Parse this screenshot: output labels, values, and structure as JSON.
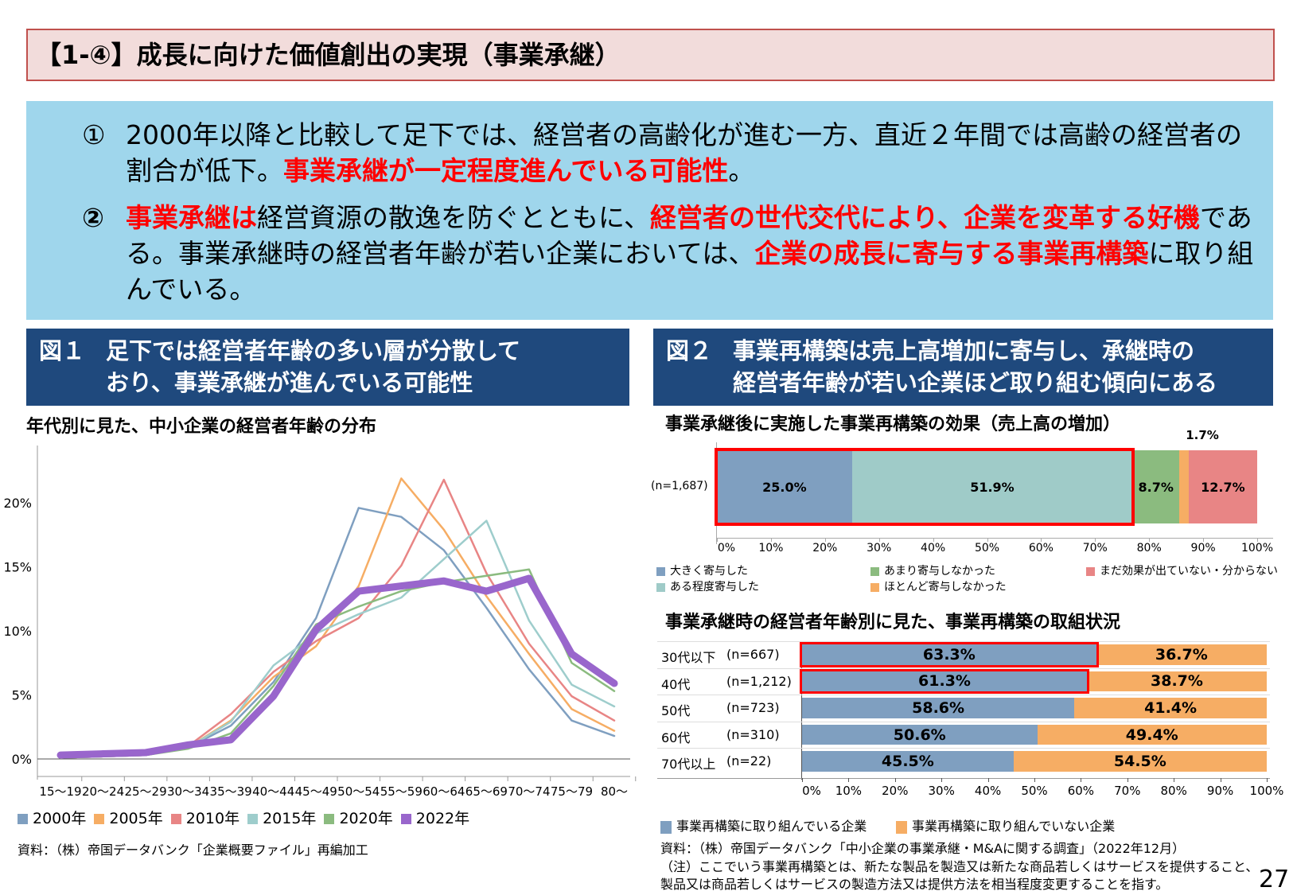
{
  "title": "【1-④】成長に向けた価値創出の実現（事業承継）",
  "summary": {
    "items": [
      {
        "num": "①",
        "segments": [
          {
            "text": "2000年以降と比較して足下では、経営者の高齢化が進む一方、直近２年間では高齢の経営者の割合が低下。",
            "red": false
          },
          {
            "text": "事業承継が一定程度進んでいる可能性",
            "red": true
          },
          {
            "text": "。",
            "red": false
          }
        ]
      },
      {
        "num": "②",
        "segments": [
          {
            "text": "事業承継は",
            "red": true
          },
          {
            "text": "経営資源の散逸を防ぐとともに、",
            "red": false
          },
          {
            "text": "経営者の世代交代により、企業を変革する好機",
            "red": true
          },
          {
            "text": "である。事業承継時の経営者年齢が若い企業においては、",
            "red": false
          },
          {
            "text": "企業の成長に寄与する事業再構築",
            "red": true
          },
          {
            "text": "に取り組んでいる。",
            "red": false
          }
        ]
      }
    ],
    "colors": {
      "background": "#9fd6ec",
      "highlight": "#ff0000"
    }
  },
  "fig1": {
    "label": "図１",
    "heading_line1": "足下では経営者年齢の多い層が分散して",
    "heading_line2": "おり、事業承継が進んでいる可能性",
    "subtitle": "年代別に見た、中小企業の経営者年齢の分布",
    "source": "資料：（株）帝国データバンク「企業概要ファイル」再編加工"
  },
  "fig2": {
    "label": "図２",
    "heading_line1": "事業再構築は売上高増加に寄与し、承継時の",
    "heading_line2": "経営者年齢が若い企業ほど取り組む傾向にある",
    "subtitle_top": "事業承継後に実施した事業再構築の効果（売上高の増加）",
    "subtitle_bottom": "事業承継時の経営者年齢別に見た、事業再構築の取組状況",
    "source": "資料：（株）帝国データバンク「中小企業の事業承継・M&Aに関する調査」（2022年12月）",
    "note_line1": "（注）ここでいう事業再構築とは、新たな製品を製造又は新たな商品若しくはサービスを提供すること、",
    "note_line2": "製品又は商品若しくはサービスの製造方法又は提供方法を相当程度変更することを指す。"
  },
  "page_number": "27",
  "chart_data": [
    {
      "type": "line",
      "categories": [
        "15～19",
        "20～24",
        "25～29",
        "30～34",
        "35～39",
        "40～44",
        "45～49",
        "50～54",
        "55～59",
        "60～64",
        "65～69",
        "70～74",
        "75～79",
        "80～"
      ],
      "ylim": [
        0,
        22
      ],
      "yticks": [
        "0%",
        "5%",
        "10%",
        "15%",
        "20%"
      ],
      "ytick_values": [
        0,
        5,
        10,
        15,
        20
      ],
      "legend_position": "bottom",
      "series": [
        {
          "name": "2000年",
          "color": "#7f9fc0",
          "values": [
            0.1,
            0.2,
            0.3,
            0.9,
            2.6,
            6.0,
            11.0,
            19.6,
            18.9,
            16.3,
            11.8,
            7.0,
            3.0,
            1.8
          ]
        },
        {
          "name": "2005年",
          "color": "#f6ad64",
          "values": [
            0.1,
            0.2,
            0.3,
            0.9,
            3.0,
            6.4,
            8.8,
            13.5,
            21.9,
            17.9,
            12.7,
            8.2,
            3.9,
            2.2
          ]
        },
        {
          "name": "2010年",
          "color": "#e88585",
          "values": [
            0.1,
            0.2,
            0.3,
            1.0,
            3.5,
            6.8,
            9.2,
            11.0,
            15.1,
            21.8,
            14.5,
            9.0,
            4.9,
            3.0
          ]
        },
        {
          "name": "2015年",
          "color": "#9ecdcc",
          "values": [
            0.1,
            0.2,
            0.3,
            0.9,
            2.9,
            7.3,
            9.8,
            11.3,
            12.6,
            15.6,
            18.6,
            10.8,
            5.8,
            4.1
          ]
        },
        {
          "name": "2020年",
          "color": "#8bbb7f",
          "values": [
            0.1,
            0.2,
            0.3,
            0.8,
            2.0,
            5.7,
            10.5,
            11.9,
            13.1,
            13.8,
            14.3,
            14.8,
            7.5,
            5.3
          ]
        },
        {
          "name": "2022年",
          "color": "#9966cc",
          "values": [
            0.3,
            0.4,
            0.5,
            1.1,
            1.5,
            4.9,
            10.1,
            13.1,
            13.5,
            13.9,
            13.1,
            14.1,
            8.2,
            5.9
          ]
        }
      ]
    },
    {
      "type": "bar",
      "orientation": "horizontal-stacked",
      "row_label": "(n=1,687)",
      "xticks": [
        "0%",
        "10%",
        "20%",
        "30%",
        "40%",
        "50%",
        "60%",
        "70%",
        "80%",
        "90%",
        "100%"
      ],
      "series": [
        {
          "name": "大きく寄与した",
          "color": "#7f9fc0",
          "value": 25.0,
          "label": "25.0%"
        },
        {
          "name": "ある程度寄与した",
          "color": "#9fcbc8",
          "value": 51.9,
          "label": "51.9%"
        },
        {
          "name": "あまり寄与しなかった",
          "color": "#8bbb7f",
          "value": 8.7,
          "label": "8.7%"
        },
        {
          "name": "ほとんど寄与しなかった",
          "color": "#f6ad64",
          "value": 1.7,
          "label": "1.7%"
        },
        {
          "name": "まだ効果が出ていない・分からない",
          "color": "#e88585",
          "value": 12.7,
          "label": "12.7%"
        }
      ],
      "highlight_color": "#ff0000"
    },
    {
      "type": "bar",
      "orientation": "horizontal-stacked",
      "xticks": [
        "0%",
        "10%",
        "20%",
        "30%",
        "40%",
        "50%",
        "60%",
        "70%",
        "80%",
        "90%",
        "100%"
      ],
      "series_names": [
        "事業再構築に取り組んでいる企業",
        "事業再構築に取り組んでいない企業"
      ],
      "series_colors": [
        "#7f9fc0",
        "#f6ad64"
      ],
      "rows": [
        {
          "age": "30代以下",
          "n": "(n=667)",
          "values": [
            63.3,
            36.7
          ],
          "labels": [
            "63.3%",
            "36.7%"
          ],
          "highlight": true
        },
        {
          "age": "40代",
          "n": "(n=1,212)",
          "values": [
            61.3,
            38.7
          ],
          "labels": [
            "61.3%",
            "38.7%"
          ],
          "highlight": true
        },
        {
          "age": "50代",
          "n": "(n=723)",
          "values": [
            58.6,
            41.4
          ],
          "labels": [
            "58.6%",
            "41.4%"
          ],
          "highlight": false
        },
        {
          "age": "60代",
          "n": "(n=310)",
          "values": [
            50.6,
            49.4
          ],
          "labels": [
            "50.6%",
            "49.4%"
          ],
          "highlight": false
        },
        {
          "age": "70代以上",
          "n": "(n=22)",
          "values": [
            45.5,
            54.5
          ],
          "labels": [
            "45.5%",
            "54.5%"
          ],
          "highlight": false
        }
      ]
    }
  ]
}
